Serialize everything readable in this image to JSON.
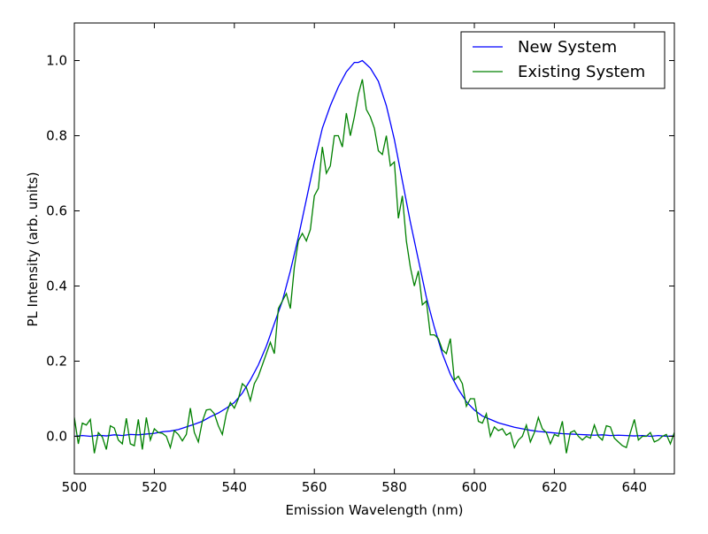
{
  "chart_data": {
    "type": "line",
    "title": "",
    "xlabel": "Emission Wavelength (nm)",
    "ylabel": "PL Intensity (arb. units)",
    "xlim": [
      500,
      650
    ],
    "ylim": [
      -0.1,
      1.1
    ],
    "xticks": [
      500,
      520,
      540,
      560,
      580,
      600,
      620,
      640
    ],
    "yticks": [
      0.0,
      0.2,
      0.4,
      0.6,
      0.8,
      1.0
    ],
    "xtick_labels": [
      "500",
      "520",
      "540",
      "560",
      "580",
      "600",
      "620",
      "640"
    ],
    "ytick_labels": [
      "0.0",
      "0.2",
      "0.4",
      "0.6",
      "0.8",
      "1.0"
    ],
    "grid": false,
    "legend_position": "top-right",
    "series": [
      {
        "name": "New System",
        "color": "#0000ff",
        "x": [
          500,
          502,
          504,
          506,
          508,
          510,
          512,
          514,
          516,
          518,
          520,
          522,
          524,
          526,
          528,
          530,
          532,
          534,
          536,
          538,
          540,
          542,
          544,
          546,
          548,
          550,
          552,
          554,
          556,
          558,
          560,
          562,
          564,
          566,
          568,
          570,
          571,
          572,
          573,
          574,
          576,
          578,
          580,
          582,
          584,
          586,
          588,
          590,
          592,
          594,
          596,
          598,
          600,
          602,
          604,
          606,
          608,
          610,
          612,
          614,
          616,
          618,
          620,
          622,
          624,
          626,
          628,
          630,
          632,
          634,
          636,
          638,
          640,
          642,
          644,
          646,
          648,
          650
        ],
        "y": [
          0.0,
          0.002,
          0.0,
          0.003,
          0.001,
          0.004,
          0.002,
          0.005,
          0.004,
          0.006,
          0.008,
          0.012,
          0.014,
          0.018,
          0.025,
          0.032,
          0.04,
          0.052,
          0.062,
          0.075,
          0.09,
          0.115,
          0.15,
          0.19,
          0.24,
          0.3,
          0.36,
          0.44,
          0.53,
          0.63,
          0.73,
          0.82,
          0.88,
          0.93,
          0.97,
          0.995,
          0.995,
          1.0,
          0.99,
          0.98,
          0.945,
          0.88,
          0.79,
          0.68,
          0.57,
          0.47,
          0.37,
          0.29,
          0.22,
          0.165,
          0.125,
          0.092,
          0.07,
          0.054,
          0.045,
          0.036,
          0.03,
          0.024,
          0.02,
          0.016,
          0.013,
          0.011,
          0.009,
          0.007,
          0.006,
          0.005,
          0.004,
          0.003,
          0.004,
          0.002,
          0.003,
          0.002,
          0.001,
          0.002,
          0.0,
          0.002,
          0.0,
          0.001
        ]
      },
      {
        "name": "Existing System",
        "color": "#008000",
        "x": [
          500,
          501,
          502,
          503,
          504,
          505,
          506,
          507,
          508,
          509,
          510,
          511,
          512,
          513,
          514,
          515,
          516,
          517,
          518,
          519,
          520,
          521,
          522,
          523,
          524,
          525,
          526,
          527,
          528,
          529,
          530,
          531,
          532,
          533,
          534,
          535,
          536,
          537,
          538,
          539,
          540,
          541,
          542,
          543,
          544,
          545,
          546,
          547,
          548,
          549,
          550,
          551,
          552,
          553,
          554,
          555,
          556,
          557,
          558,
          559,
          560,
          561,
          562,
          563,
          564,
          565,
          566,
          567,
          568,
          569,
          570,
          571,
          572,
          573,
          574,
          575,
          576,
          577,
          578,
          579,
          580,
          581,
          582,
          583,
          584,
          585,
          586,
          587,
          588,
          589,
          590,
          591,
          592,
          593,
          594,
          595,
          596,
          597,
          598,
          599,
          600,
          601,
          602,
          603,
          604,
          605,
          606,
          607,
          608,
          609,
          610,
          611,
          612,
          613,
          614,
          615,
          616,
          617,
          618,
          619,
          620,
          621,
          622,
          623,
          624,
          625,
          626,
          627,
          628,
          629,
          630,
          631,
          632,
          633,
          634,
          635,
          636,
          637,
          638,
          639,
          640,
          641,
          642,
          643,
          644,
          645,
          646,
          647,
          648,
          649,
          650
        ],
        "y": [
          0.05,
          -0.02,
          0.035,
          0.03,
          0.045,
          -0.045,
          0.01,
          -0.002,
          -0.035,
          0.028,
          0.022,
          -0.01,
          -0.02,
          0.048,
          -0.02,
          -0.025,
          0.045,
          -0.035,
          0.05,
          -0.01,
          0.02,
          0.01,
          0.008,
          0.0,
          -0.03,
          0.015,
          0.005,
          -0.012,
          0.005,
          0.075,
          0.01,
          -0.015,
          0.04,
          0.07,
          0.072,
          0.06,
          0.028,
          0.005,
          0.06,
          0.09,
          0.075,
          0.1,
          0.14,
          0.13,
          0.095,
          0.14,
          0.16,
          0.19,
          0.22,
          0.25,
          0.22,
          0.34,
          0.36,
          0.38,
          0.34,
          0.45,
          0.52,
          0.54,
          0.52,
          0.55,
          0.64,
          0.66,
          0.77,
          0.7,
          0.72,
          0.8,
          0.8,
          0.77,
          0.86,
          0.8,
          0.85,
          0.91,
          0.95,
          0.87,
          0.85,
          0.82,
          0.76,
          0.75,
          0.8,
          0.72,
          0.73,
          0.58,
          0.64,
          0.52,
          0.45,
          0.4,
          0.44,
          0.35,
          0.36,
          0.27,
          0.27,
          0.26,
          0.23,
          0.22,
          0.26,
          0.15,
          0.16,
          0.14,
          0.08,
          0.1,
          0.1,
          0.04,
          0.035,
          0.06,
          0.0,
          0.025,
          0.015,
          0.02,
          0.003,
          0.01,
          -0.03,
          -0.01,
          0.0,
          0.03,
          -0.015,
          0.01,
          0.05,
          0.02,
          0.01,
          -0.02,
          0.005,
          0.0,
          0.04,
          -0.045,
          0.01,
          0.015,
          0.0,
          -0.01,
          0.0,
          -0.005,
          0.03,
          0.0,
          -0.01,
          0.028,
          0.025,
          -0.005,
          -0.015,
          -0.025,
          -0.03,
          0.01,
          0.045,
          -0.01,
          0.0,
          0.0,
          0.01,
          -0.015,
          -0.01,
          0.0,
          0.005,
          -0.02,
          0.01
        ]
      }
    ]
  }
}
